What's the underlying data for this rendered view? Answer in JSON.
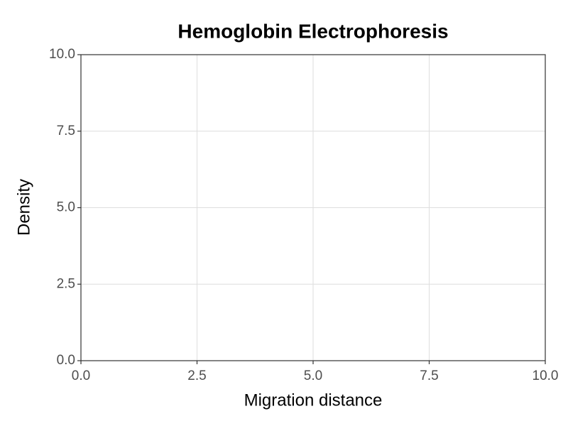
{
  "chart_data": {
    "type": "line",
    "title": "Hemoglobin Electrophoresis",
    "x_label": "Migration distance",
    "y_label": "Density",
    "series": [],
    "xlim": [
      0,
      10
    ],
    "ylim": [
      0,
      10
    ],
    "xticks": [
      {
        "value": 0,
        "label": "0.0"
      },
      2.5,
      {
        "value": 5,
        "label": "5.0"
      },
      7.5,
      {
        "value": 10,
        "label": "10.0"
      }
    ],
    "yticks": [
      {
        "value": 0,
        "label": "0.0"
      },
      2.5,
      {
        "value": 5,
        "label": "5.0"
      },
      7.5,
      {
        "value": 10,
        "label": "10.0"
      }
    ],
    "grid": true
  }
}
